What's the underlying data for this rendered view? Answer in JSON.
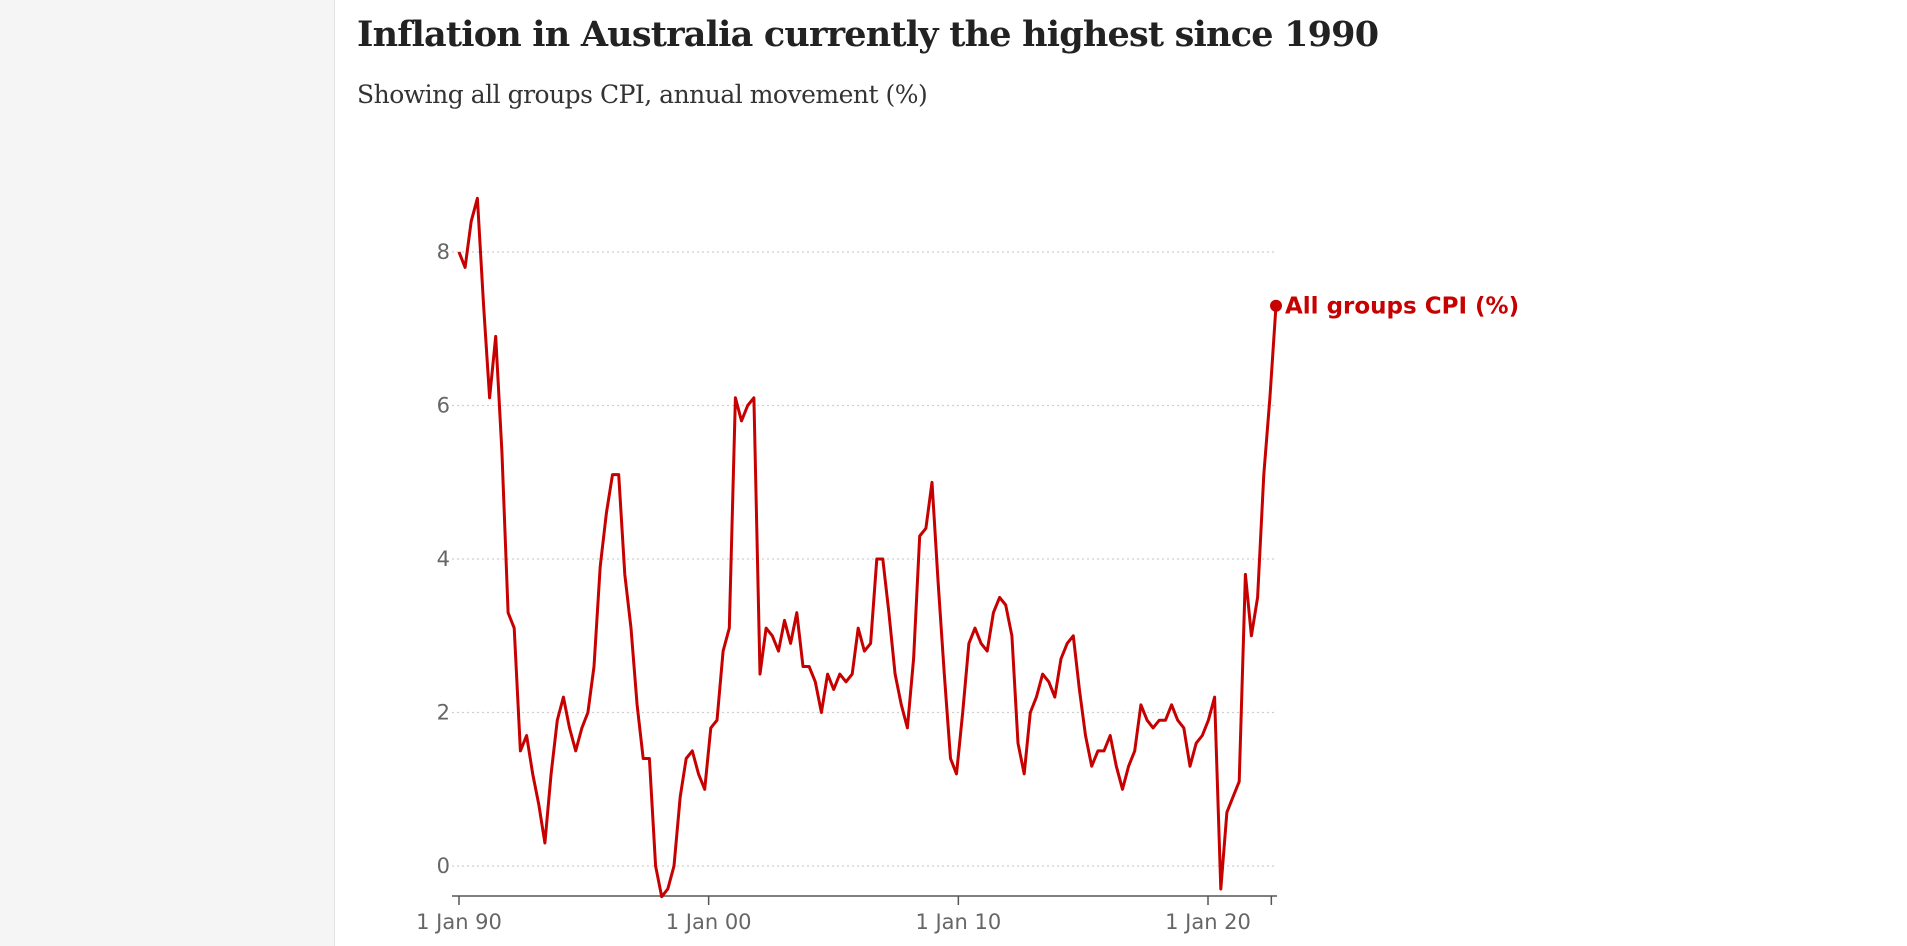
{
  "title": "Inflation in Australia currently the highest since 1990",
  "subtitle": "Showing all groups CPI, annual movement (%)",
  "colors": {
    "series": "#c70000",
    "title": "#222222",
    "axis_text": "#666666",
    "grid": "#cfcfcf"
  },
  "chart_data": {
    "type": "line",
    "title": "Inflation in Australia currently the highest since 1990",
    "subtitle": "Showing all groups CPI, annual movement (%)",
    "xlabel": "",
    "ylabel": "",
    "xlim": [
      "1990-01-01",
      "2022-07-01"
    ],
    "ylim": [
      -0.4,
      8.8
    ],
    "y_ticks": [
      0,
      2,
      4,
      6,
      8
    ],
    "x_ticks": [
      {
        "date": "1990-01-01",
        "label": "1 Jan 90"
      },
      {
        "date": "2000-01-01",
        "label": "1 Jan 00"
      },
      {
        "date": "2010-01-01",
        "label": "1 Jan 10"
      },
      {
        "date": "2020-01-01",
        "label": "1 Jan 20"
      }
    ],
    "minor_x_ticks": [
      "2022-07-01"
    ],
    "grid": "horizontal dashed",
    "legend": "direct label at line end",
    "series": [
      {
        "name": "All groups CPI (%)",
        "points": [
          [
            "1990-01-01",
            8.0
          ],
          [
            "1990-04-01",
            7.8
          ],
          [
            "1990-07-01",
            8.4
          ],
          [
            "1990-10-01",
            8.7
          ],
          [
            "1991-01-01",
            7.3
          ],
          [
            "1991-04-01",
            6.1
          ],
          [
            "1991-07-01",
            6.9
          ],
          [
            "1991-10-01",
            5.4
          ],
          [
            "1992-01-01",
            3.3
          ],
          [
            "1992-04-01",
            3.1
          ],
          [
            "1992-07-01",
            1.5
          ],
          [
            "1992-10-01",
            1.7
          ],
          [
            "1993-01-01",
            1.2
          ],
          [
            "1993-04-01",
            0.8
          ],
          [
            "1993-07-01",
            0.3
          ],
          [
            "1993-10-01",
            1.2
          ],
          [
            "1994-01-01",
            1.9
          ],
          [
            "1994-04-01",
            2.2
          ],
          [
            "1994-07-01",
            1.8
          ],
          [
            "1994-10-01",
            1.5
          ],
          [
            "1995-01-01",
            1.8
          ],
          [
            "1995-04-01",
            2.0
          ],
          [
            "1995-07-01",
            2.6
          ],
          [
            "1995-10-01",
            3.9
          ],
          [
            "1996-01-01",
            4.6
          ],
          [
            "1996-04-01",
            5.1
          ],
          [
            "1996-07-01",
            5.1
          ],
          [
            "1996-10-01",
            3.8
          ],
          [
            "1997-01-01",
            3.1
          ],
          [
            "1997-04-01",
            2.1
          ],
          [
            "1997-07-01",
            1.4
          ],
          [
            "1997-10-01",
            1.4
          ],
          [
            "1998-01-01",
            0.0
          ],
          [
            "1998-04-01",
            -0.4
          ],
          [
            "1998-07-01",
            -0.3
          ],
          [
            "1998-10-01",
            0.0
          ],
          [
            "1999-01-01",
            0.9
          ],
          [
            "1999-04-01",
            1.4
          ],
          [
            "1999-07-01",
            1.5
          ],
          [
            "1999-10-01",
            1.2
          ],
          [
            "2000-01-01",
            1.0
          ],
          [
            "2000-04-01",
            1.8
          ],
          [
            "2000-07-01",
            1.9
          ],
          [
            "2000-10-01",
            2.8
          ],
          [
            "2001-01-01",
            3.1
          ],
          [
            "2001-04-01",
            6.1
          ],
          [
            "2001-07-01",
            5.8
          ],
          [
            "2001-10-01",
            6.0
          ],
          [
            "2002-01-01",
            6.1
          ],
          [
            "2002-04-01",
            2.5
          ],
          [
            "2002-07-01",
            3.1
          ],
          [
            "2002-10-01",
            3.0
          ],
          [
            "2003-01-01",
            2.8
          ],
          [
            "2003-04-01",
            3.2
          ],
          [
            "2003-07-01",
            2.9
          ],
          [
            "2003-10-01",
            3.3
          ],
          [
            "2004-01-01",
            2.6
          ],
          [
            "2004-04-01",
            2.6
          ],
          [
            "2004-07-01",
            2.4
          ],
          [
            "2004-10-01",
            2.0
          ],
          [
            "2005-01-01",
            2.5
          ],
          [
            "2005-04-01",
            2.3
          ],
          [
            "2005-07-01",
            2.5
          ],
          [
            "2005-10-01",
            2.4
          ],
          [
            "2006-01-01",
            2.5
          ],
          [
            "2006-04-01",
            3.1
          ],
          [
            "2006-07-01",
            2.8
          ],
          [
            "2006-10-01",
            2.9
          ],
          [
            "2007-01-01",
            4.0
          ],
          [
            "2007-04-01",
            4.0
          ],
          [
            "2007-07-01",
            3.3
          ],
          [
            "2007-10-01",
            2.5
          ],
          [
            "2008-01-01",
            2.1
          ],
          [
            "2008-04-01",
            1.8
          ],
          [
            "2008-07-01",
            2.7
          ],
          [
            "2008-10-01",
            4.3
          ],
          [
            "2009-01-01",
            4.4
          ],
          [
            "2009-04-01",
            5.0
          ],
          [
            "2009-07-01",
            3.7
          ],
          [
            "2009-10-01",
            2.5
          ],
          [
            "2010-01-01",
            1.4
          ],
          [
            "2010-04-01",
            1.2
          ],
          [
            "2010-07-01",
            2.0
          ],
          [
            "2010-10-01",
            2.9
          ],
          [
            "2011-01-01",
            3.1
          ],
          [
            "2011-04-01",
            2.9
          ],
          [
            "2011-07-01",
            2.8
          ],
          [
            "2011-10-01",
            3.3
          ],
          [
            "2012-01-01",
            3.5
          ],
          [
            "2012-04-01",
            3.4
          ],
          [
            "2012-07-01",
            3.0
          ],
          [
            "2012-10-01",
            1.6
          ],
          [
            "2013-01-01",
            1.2
          ],
          [
            "2013-04-01",
            2.0
          ],
          [
            "2013-07-01",
            2.2
          ],
          [
            "2013-10-01",
            2.5
          ],
          [
            "2014-01-01",
            2.4
          ],
          [
            "2014-04-01",
            2.2
          ],
          [
            "2014-07-01",
            2.7
          ],
          [
            "2014-10-01",
            2.9
          ],
          [
            "2015-01-01",
            3.0
          ],
          [
            "2015-04-01",
            2.3
          ],
          [
            "2015-07-01",
            1.7
          ],
          [
            "2015-10-01",
            1.3
          ],
          [
            "2016-01-01",
            1.5
          ],
          [
            "2016-04-01",
            1.5
          ],
          [
            "2016-07-01",
            1.7
          ],
          [
            "2016-10-01",
            1.3
          ],
          [
            "2017-01-01",
            1.0
          ],
          [
            "2017-04-01",
            1.3
          ],
          [
            "2017-07-01",
            1.5
          ],
          [
            "2017-10-01",
            2.1
          ],
          [
            "2018-01-01",
            1.9
          ],
          [
            "2018-04-01",
            1.8
          ],
          [
            "2018-07-01",
            1.9
          ],
          [
            "2018-10-01",
            1.9
          ],
          [
            "2019-01-01",
            2.1
          ],
          [
            "2019-04-01",
            1.9
          ],
          [
            "2019-07-01",
            1.8
          ],
          [
            "2019-10-01",
            1.3
          ],
          [
            "2020-01-01",
            1.6
          ],
          [
            "2020-04-01",
            1.7
          ],
          [
            "2020-07-01",
            1.9
          ],
          [
            "2020-10-01",
            2.2
          ],
          [
            "2021-01-01",
            -0.3
          ],
          [
            "2021-04-01",
            0.7
          ],
          [
            "2021-07-01",
            0.9
          ],
          [
            "2021-10-01",
            1.1
          ],
          [
            "2022-01-01",
            3.8
          ],
          [
            "2022-04-01",
            3.0
          ],
          [
            "2022-07-01",
            3.5
          ],
          [
            "2022-10-01",
            5.1
          ],
          [
            "2023-01-01",
            6.1
          ],
          [
            "2023-04-01",
            7.3
          ]
        ]
      }
    ]
  }
}
